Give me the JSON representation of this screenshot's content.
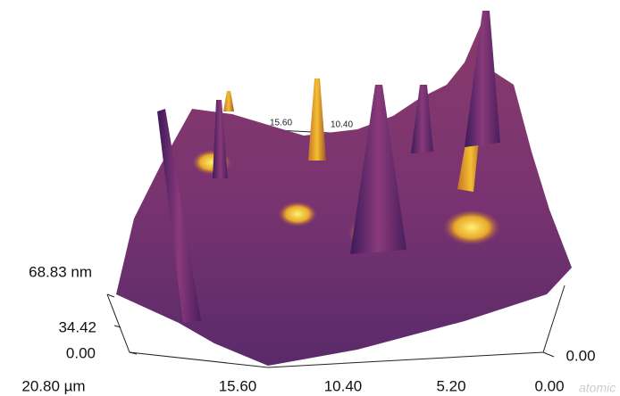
{
  "z_axis": {
    "labels": [
      "68.83 nm",
      "34.42",
      "0.00"
    ]
  },
  "x_axis": {
    "labels": [
      "20.80 µm",
      "15.60",
      "10.40",
      "5.20",
      "0.00"
    ]
  },
  "y_axis": {
    "labels": [
      "0.00"
    ]
  },
  "back_axis": {
    "labels": [
      "15.60",
      "10.40"
    ]
  },
  "watermark": "atomic"
}
